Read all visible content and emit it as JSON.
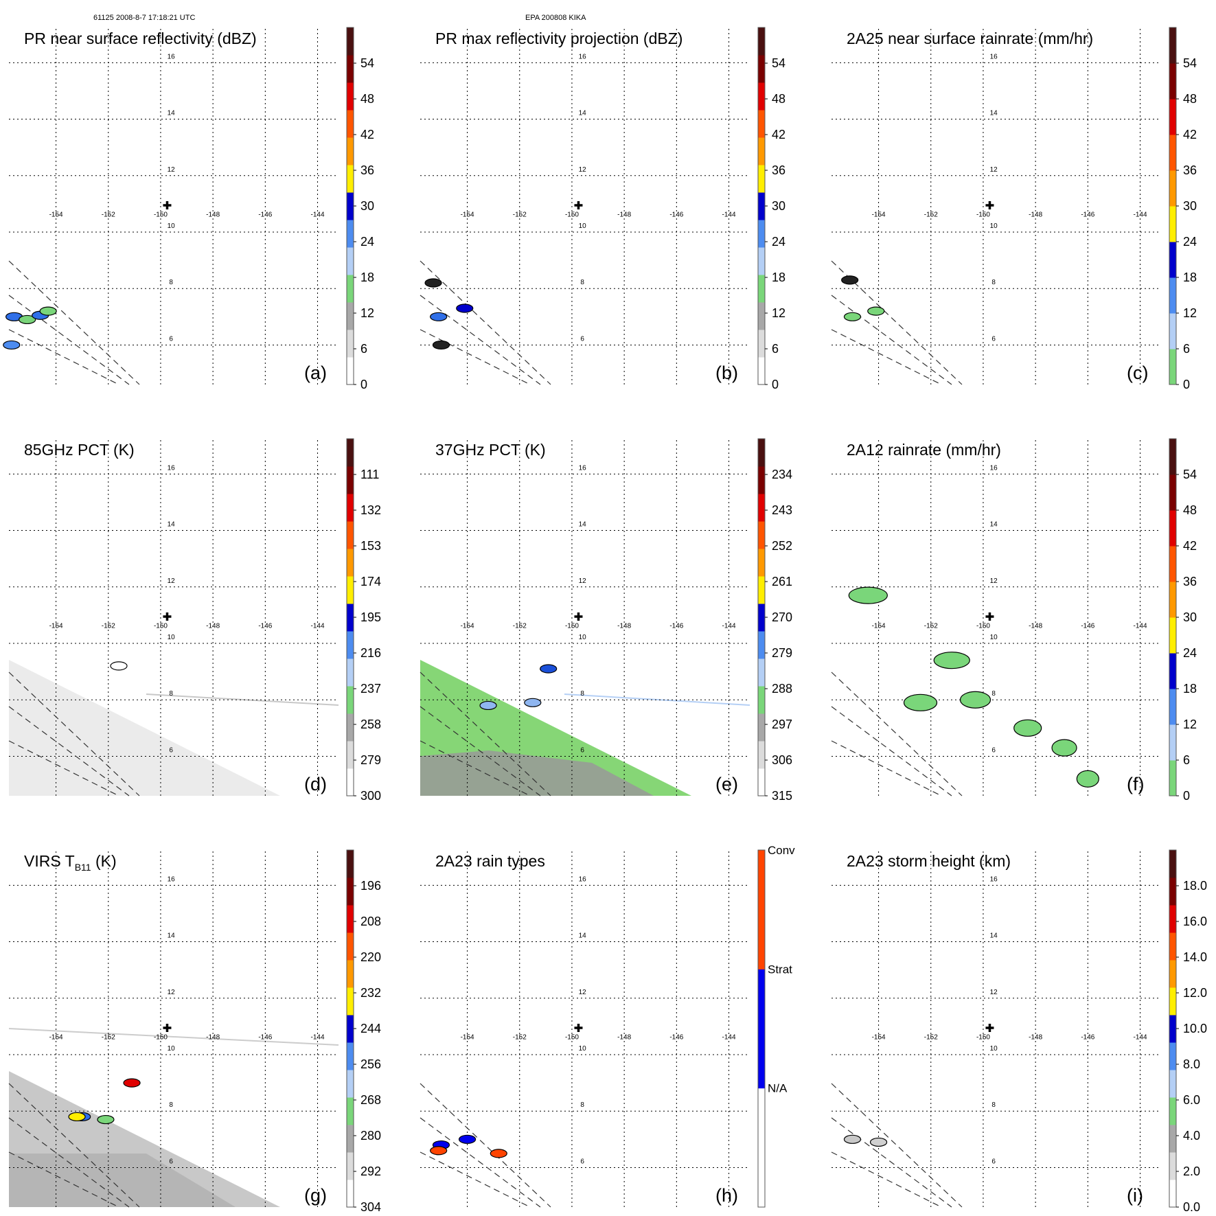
{
  "header": {
    "left": "61125 2008-8-7 17:18:21 UTC",
    "center": "EPA 200808 KIKA"
  },
  "grid": {
    "lon_ticks": [
      -154,
      -152,
      -150,
      -148,
      -146,
      -144
    ],
    "lon_labels": [
      "-154",
      "-152",
      "-150",
      "-148",
      "-146",
      "-144"
    ],
    "lat_ticks": [
      16,
      14,
      12,
      10,
      8,
      6
    ],
    "lat_labels": [
      "16",
      "14",
      "12",
      "10",
      "8",
      "6"
    ],
    "lon_range": [
      -155.8,
      -143.2
    ],
    "lat_range": [
      4.6,
      17.2
    ],
    "center": {
      "lon": -149.75,
      "lat": 10.95,
      "marker": "plus-icon"
    }
  },
  "chart_data": [
    {
      "type": "heatmap",
      "id": "a",
      "title": "PR near surface reflectivity (dBZ)",
      "label": "(a)",
      "cbar_ticks": [
        "0",
        "6",
        "12",
        "18",
        "24",
        "30",
        "36",
        "42",
        "48",
        "54"
      ],
      "colors": [
        "#ffffff",
        "#dcdcdc",
        "#a8a8a8",
        "#7ad67a",
        "#b4cff5",
        "#4d8cf0",
        "#0000cc",
        "#ffee00",
        "#ff9900",
        "#ff5500",
        "#e00000",
        "#7a0000",
        "#4a1010"
      ],
      "features": [
        {
          "lon": -155.6,
          "lat": 7.0,
          "color": "#2f6fe8"
        },
        {
          "lon": -155.1,
          "lat": 6.9,
          "color": "#79d479"
        },
        {
          "lon": -154.6,
          "lat": 7.05,
          "color": "#2f6fe8"
        },
        {
          "lon": -154.3,
          "lat": 7.2,
          "color": "#7ad67a"
        },
        {
          "lon": -155.7,
          "lat": 6.0,
          "color": "#4d8cf0"
        }
      ]
    },
    {
      "type": "heatmap",
      "id": "b",
      "title": "PR max reflectivity projection (dBZ)",
      "label": "(b)",
      "cbar_ticks": [
        "0",
        "6",
        "12",
        "18",
        "24",
        "30",
        "36",
        "42",
        "48",
        "54"
      ],
      "colors": [
        "#ffffff",
        "#dcdcdc",
        "#a8a8a8",
        "#7ad67a",
        "#b4cff5",
        "#4d8cf0",
        "#0000cc",
        "#ffee00",
        "#ff9900",
        "#ff5500",
        "#e00000",
        "#7a0000",
        "#4a1010"
      ],
      "features": [
        {
          "lon": -155.1,
          "lat": 7.0,
          "color": "#2f6fe8"
        },
        {
          "lon": -154.1,
          "lat": 7.3,
          "color": "#0000cc"
        },
        {
          "lon": -155.3,
          "lat": 8.2,
          "color": "#222222"
        },
        {
          "lon": -155.0,
          "lat": 6.0,
          "color": "#222222"
        }
      ]
    },
    {
      "type": "heatmap",
      "id": "c",
      "title": "2A25 near surface rainrate (mm/hr)",
      "label": "(c)",
      "cbar_ticks": [
        "0",
        "6",
        "12",
        "18",
        "24",
        "30",
        "36",
        "42",
        "48",
        "54"
      ],
      "colors": [
        "#7ad67a",
        "#b4cff5",
        "#4d8cf0",
        "#0000cc",
        "#ffee00",
        "#ff9900",
        "#ff5500",
        "#e00000",
        "#7a0000",
        "#4a1010"
      ],
      "features": [
        {
          "lon": -155.0,
          "lat": 7.0,
          "color": "#7ad67a"
        },
        {
          "lon": -154.1,
          "lat": 7.2,
          "color": "#7ad67a"
        },
        {
          "lon": -155.1,
          "lat": 8.3,
          "color": "#222222"
        }
      ]
    },
    {
      "type": "heatmap",
      "id": "d",
      "title": "85GHz PCT (K)",
      "label": "(d)",
      "cbar_ticks": [
        "300",
        "279",
        "258",
        "237",
        "216",
        "195",
        "174",
        "153",
        "132",
        "111"
      ],
      "colors": [
        "#ffffff",
        "#dcdcdc",
        "#a8a8a8",
        "#7ad67a",
        "#b4cff5",
        "#4d8cf0",
        "#0000cc",
        "#ffee00",
        "#ff9900",
        "#ff5500",
        "#e00000",
        "#7a0000",
        "#4a1010"
      ],
      "features": [
        {
          "lon": -151.6,
          "lat": 9.2,
          "color": "#ffffff"
        }
      ]
    },
    {
      "type": "heatmap",
      "id": "e",
      "title": "37GHz PCT (K)",
      "label": "(e)",
      "cbar_ticks": [
        "315",
        "306",
        "297",
        "288",
        "279",
        "270",
        "261",
        "252",
        "243",
        "234"
      ],
      "colors": [
        "#ffffff",
        "#dcdcdc",
        "#a8a8a8",
        "#7ad67a",
        "#b4cff5",
        "#4d8cf0",
        "#0000cc",
        "#ffee00",
        "#ff9900",
        "#ff5500",
        "#e00000",
        "#7a0000",
        "#4a1010"
      ],
      "features": [
        {
          "lon": -150.9,
          "lat": 9.1,
          "color": "#1a4fd8"
        },
        {
          "lon": -153.2,
          "lat": 7.8,
          "color": "#8fb6f0"
        },
        {
          "lon": -151.5,
          "lat": 7.9,
          "color": "#8fb6f0"
        }
      ]
    },
    {
      "type": "heatmap",
      "id": "f",
      "title": "2A12 rainrate (mm/hr)",
      "label": "(f)",
      "cbar_ticks": [
        "0",
        "6",
        "12",
        "18",
        "24",
        "30",
        "36",
        "42",
        "48",
        "54"
      ],
      "colors": [
        "#7ad67a",
        "#b4cff5",
        "#4d8cf0",
        "#0000cc",
        "#ffee00",
        "#ff9900",
        "#ff5500",
        "#e00000",
        "#7a0000",
        "#4a1010"
      ],
      "features": [
        {
          "lon": -154.4,
          "lat": 11.7,
          "color": "#7ad67a"
        },
        {
          "lon": -151.2,
          "lat": 9.4,
          "color": "#7ad67a"
        },
        {
          "lon": -152.4,
          "lat": 7.9,
          "color": "#7ad67a"
        },
        {
          "lon": -150.3,
          "lat": 8.0,
          "color": "#7ad67a"
        },
        {
          "lon": -148.3,
          "lat": 7.0,
          "color": "#7ad67a"
        },
        {
          "lon": -146.9,
          "lat": 6.3,
          "color": "#7ad67a"
        },
        {
          "lon": -146.0,
          "lat": 5.2,
          "color": "#7ad67a"
        }
      ]
    },
    {
      "type": "heatmap",
      "id": "g",
      "title": "VIRS T",
      "title_sub": "B11",
      "title_suffix": " (K)",
      "label": "(g)",
      "cbar_ticks": [
        "304",
        "292",
        "280",
        "268",
        "256",
        "244",
        "232",
        "220",
        "208",
        "196"
      ],
      "colors": [
        "#ffffff",
        "#dcdcdc",
        "#a8a8a8",
        "#7ad67a",
        "#b4cff5",
        "#4d8cf0",
        "#0000cc",
        "#ffee00",
        "#ff9900",
        "#ff5500",
        "#e00000",
        "#7a0000",
        "#4a1010"
      ],
      "features": [
        {
          "lon": -153.0,
          "lat": 7.8,
          "color": "#2f6fe8"
        },
        {
          "lon": -153.2,
          "lat": 7.8,
          "color": "#ffee00"
        },
        {
          "lon": -152.1,
          "lat": 7.7,
          "color": "#7ad67a"
        },
        {
          "lon": -151.1,
          "lat": 9.0,
          "color": "#e00000"
        }
      ]
    },
    {
      "type": "heatmap",
      "id": "h",
      "title": "2A23 rain types",
      "label": "(h)",
      "categories": [
        "N/A",
        "Strat",
        "Conv"
      ],
      "colors": [
        "#ffffff",
        "#0000ee",
        "#ff4400"
      ],
      "features": [
        {
          "lon": -155.0,
          "lat": 6.8,
          "color": "#0000ee"
        },
        {
          "lon": -154.0,
          "lat": 7.0,
          "color": "#0000ee"
        },
        {
          "lon": -155.1,
          "lat": 6.6,
          "color": "#ff4400"
        },
        {
          "lon": -152.8,
          "lat": 6.5,
          "color": "#ff4400"
        }
      ]
    },
    {
      "type": "heatmap",
      "id": "i",
      "title": "2A23 storm height (km)",
      "label": "(i)",
      "cbar_ticks": [
        "0.0",
        "2.0",
        "4.0",
        "6.0",
        "8.0",
        "10.0",
        "12.0",
        "14.0",
        "16.0",
        "18.0"
      ],
      "colors": [
        "#ffffff",
        "#dcdcdc",
        "#a8a8a8",
        "#7ad67a",
        "#b4cff5",
        "#4d8cf0",
        "#0000cc",
        "#ffee00",
        "#ff9900",
        "#ff5500",
        "#e00000",
        "#7a0000",
        "#4a1010"
      ],
      "features": [
        {
          "lon": -155.0,
          "lat": 7.0,
          "color": "#c8c8c8"
        },
        {
          "lon": -154.0,
          "lat": 6.9,
          "color": "#d0d0d0"
        }
      ]
    }
  ]
}
